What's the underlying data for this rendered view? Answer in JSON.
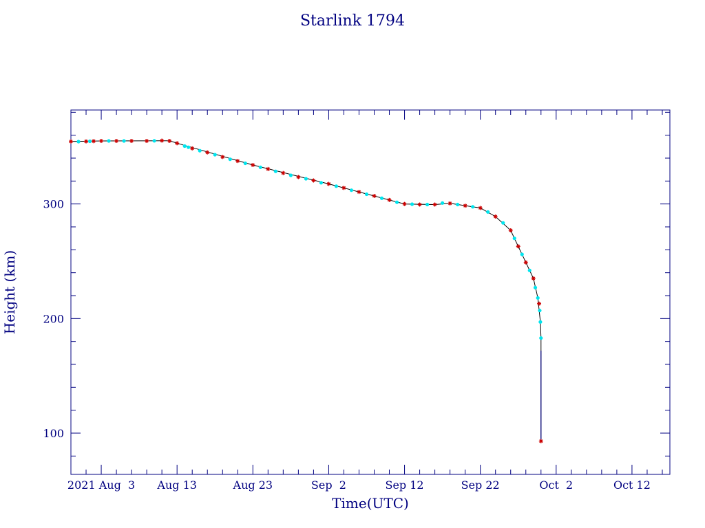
{
  "colors": {
    "axis": "#000080",
    "line": "#000000",
    "marker_red": "#cc0000",
    "marker_cyan": "#00e5ee"
  },
  "chart_data": {
    "type": "scatter",
    "title": "Starlink 1794",
    "xlabel": "Time(UTC)",
    "ylabel": "Height (km)",
    "xlim": [
      "2021-07-30",
      "2021-10-17"
    ],
    "ylim": [
      64,
      382
    ],
    "grid": false,
    "x_ticks": [
      {
        "date": "2021-08-03",
        "label": "2021 Aug  3"
      },
      {
        "date": "2021-08-13",
        "label": "Aug 13"
      },
      {
        "date": "2021-08-23",
        "label": "Aug 23"
      },
      {
        "date": "2021-09-02",
        "label": "Sep  2"
      },
      {
        "date": "2021-09-12",
        "label": "Sep 12"
      },
      {
        "date": "2021-09-22",
        "label": "Sep 22"
      },
      {
        "date": "2021-10-02",
        "label": "Oct  2"
      },
      {
        "date": "2021-10-12",
        "label": "Oct 12"
      }
    ],
    "y_ticks": [
      {
        "value": 100,
        "label": "100"
      },
      {
        "value": 200,
        "label": "200"
      },
      {
        "value": 300,
        "label": "300"
      }
    ],
    "series": [
      {
        "marker": "asterisk",
        "color": "#cc0000",
        "points": [
          [
            "2021-07-30",
            354.5
          ],
          [
            "2021-08-01",
            354.6
          ],
          [
            "2021-08-02",
            354.8
          ],
          [
            "2021-08-03",
            355.0
          ],
          [
            "2021-08-05",
            355.0
          ],
          [
            "2021-08-07",
            355.0
          ],
          [
            "2021-08-09",
            355.0
          ],
          [
            "2021-08-11",
            355.3
          ],
          [
            "2021-08-12",
            355.0
          ],
          [
            "2021-08-13",
            353.0
          ],
          [
            "2021-08-15",
            348.5
          ],
          [
            "2021-08-17",
            345.0
          ],
          [
            "2021-08-19",
            341.0
          ],
          [
            "2021-08-21",
            337.5
          ],
          [
            "2021-08-23",
            334.0
          ],
          [
            "2021-08-25",
            330.5
          ],
          [
            "2021-08-27",
            327.0
          ],
          [
            "2021-08-29",
            323.5
          ],
          [
            "2021-08-31",
            320.5
          ],
          [
            "2021-09-02",
            317.5
          ],
          [
            "2021-09-04",
            314.0
          ],
          [
            "2021-09-06",
            310.5
          ],
          [
            "2021-09-08",
            307.0
          ],
          [
            "2021-09-10",
            303.5
          ],
          [
            "2021-09-12",
            300.0
          ],
          [
            "2021-09-14",
            299.5
          ],
          [
            "2021-09-16",
            299.5
          ],
          [
            "2021-09-18",
            300.5
          ],
          [
            "2021-09-20",
            298.5
          ],
          [
            "2021-09-22",
            296.5
          ],
          [
            "2021-09-24",
            289.0
          ],
          [
            "2021-09-26",
            277.0
          ],
          [
            "2021-09-27",
            263.0
          ],
          [
            "2021-09-28",
            249.0
          ],
          [
            "2021-09-29",
            235.0
          ],
          [
            "2021-09-29T18:00",
            213.0
          ],
          [
            "2021-09-30",
            93.0
          ]
        ]
      },
      {
        "marker": "dot",
        "color": "#00e5ee",
        "points": [
          [
            "2021-07-31",
            354.4
          ],
          [
            "2021-08-01T12:00",
            354.7
          ],
          [
            "2021-08-04",
            355.0
          ],
          [
            "2021-08-06",
            355.0
          ],
          [
            "2021-08-10",
            355.1
          ],
          [
            "2021-08-14",
            350.5
          ],
          [
            "2021-08-14T12:00",
            349.5
          ],
          [
            "2021-08-16",
            346.5
          ],
          [
            "2021-08-18",
            343.0
          ],
          [
            "2021-08-20",
            339.0
          ],
          [
            "2021-08-22",
            335.5
          ],
          [
            "2021-08-24",
            332.0
          ],
          [
            "2021-08-26",
            328.5
          ],
          [
            "2021-08-28",
            325.0
          ],
          [
            "2021-08-30",
            322.0
          ],
          [
            "2021-09-01",
            318.5
          ],
          [
            "2021-09-03",
            315.5
          ],
          [
            "2021-09-05",
            312.0
          ],
          [
            "2021-09-07",
            308.5
          ],
          [
            "2021-09-09",
            305.0
          ],
          [
            "2021-09-11",
            301.5
          ],
          [
            "2021-09-13",
            299.8
          ],
          [
            "2021-09-15",
            299.5
          ],
          [
            "2021-09-17",
            300.8
          ],
          [
            "2021-09-19",
            299.5
          ],
          [
            "2021-09-21",
            297.5
          ],
          [
            "2021-09-23",
            293.0
          ],
          [
            "2021-09-25",
            283.5
          ],
          [
            "2021-09-26T12:00",
            270.0
          ],
          [
            "2021-09-27T12:00",
            256.0
          ],
          [
            "2021-09-28T12:00",
            242.0
          ],
          [
            "2021-09-29T06:00",
            227.0
          ],
          [
            "2021-09-29T14:00",
            218.0
          ],
          [
            "2021-09-29T20:00",
            207.0
          ],
          [
            "2021-09-29T22:00",
            197.0
          ],
          [
            "2021-09-30",
            183.0
          ]
        ]
      }
    ],
    "line": [
      [
        "2021-07-30",
        354.5
      ],
      [
        "2021-08-03",
        355.0
      ],
      [
        "2021-08-12",
        355.2
      ],
      [
        "2021-08-13",
        353.0
      ],
      [
        "2021-08-23",
        334.0
      ],
      [
        "2021-09-02",
        317.5
      ],
      [
        "2021-09-12",
        300.0
      ],
      [
        "2021-09-16",
        299.5
      ],
      [
        "2021-09-18",
        300.5
      ],
      [
        "2021-09-22",
        296.5
      ],
      [
        "2021-09-24",
        289.0
      ],
      [
        "2021-09-26",
        277.0
      ],
      [
        "2021-09-27",
        263.0
      ],
      [
        "2021-09-28",
        249.0
      ],
      [
        "2021-09-29",
        235.0
      ],
      [
        "2021-09-29T14:00",
        218.0
      ],
      [
        "2021-09-29T22:00",
        197.0
      ],
      [
        "2021-09-30",
        183.0
      ],
      [
        "2021-09-30",
        172.0
      ],
      [
        "2021-09-30",
        140.0
      ],
      [
        "2021-09-30",
        93.0
      ]
    ]
  }
}
